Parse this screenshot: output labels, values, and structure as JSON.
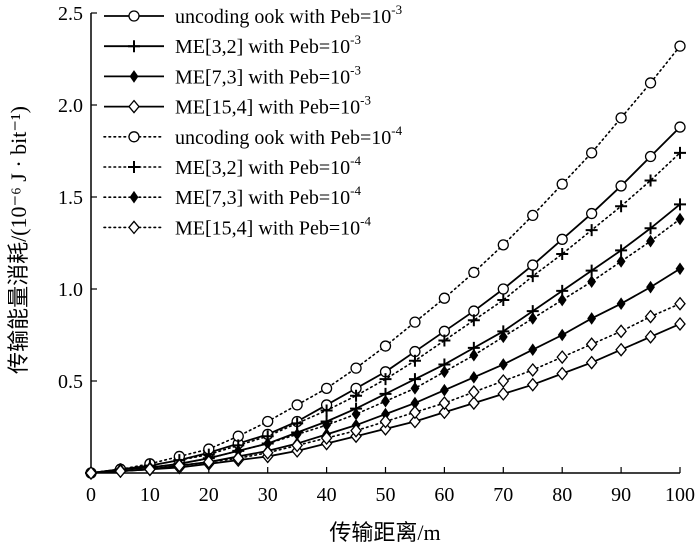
{
  "chart_data": {
    "type": "line",
    "title": "",
    "xlabel": "传输距离/m",
    "ylabel": "传输能量消耗/(10⁻⁶ J · bit⁻¹)",
    "xlim": [
      0,
      100
    ],
    "ylim": [
      0,
      2.5
    ],
    "xticks": [
      0,
      10,
      20,
      30,
      40,
      50,
      60,
      70,
      80,
      90,
      100
    ],
    "yticks": [
      0.5,
      1.0,
      1.5,
      2.0,
      2.5
    ],
    "xtick_labels": [
      "0",
      "10",
      "20",
      "30",
      "40",
      "50",
      "60",
      "70",
      "80",
      "90",
      "100"
    ],
    "ytick_labels": [
      "0.5",
      "1.0",
      "1.5",
      "2.0",
      "2.5"
    ],
    "grid": false,
    "legend_position": "top-left",
    "x": [
      0,
      5,
      10,
      15,
      20,
      25,
      30,
      35,
      40,
      45,
      50,
      55,
      60,
      65,
      70,
      75,
      80,
      85,
      90,
      95,
      100
    ],
    "series": [
      {
        "name": "uncoding ook with Peb=10-3",
        "label_main": "uncoding ook with Peb=10",
        "label_exp": "-3",
        "linestyle": "solid",
        "marker": "circle",
        "values": [
          0.0,
          0.02,
          0.04,
          0.07,
          0.11,
          0.16,
          0.21,
          0.28,
          0.37,
          0.46,
          0.55,
          0.66,
          0.77,
          0.88,
          1.0,
          1.13,
          1.27,
          1.41,
          1.56,
          1.72,
          1.88
        ]
      },
      {
        "name": "ME[3,2] with Peb=10-3",
        "label_main": "ME[3,2]  with Peb=10",
        "label_exp": "-3",
        "linestyle": "solid",
        "marker": "plus",
        "values": [
          0.0,
          0.02,
          0.03,
          0.05,
          0.08,
          0.12,
          0.16,
          0.22,
          0.28,
          0.35,
          0.43,
          0.51,
          0.59,
          0.68,
          0.77,
          0.88,
          0.99,
          1.1,
          1.21,
          1.33,
          1.46
        ]
      },
      {
        "name": "ME[7,3] with Peb=10-3",
        "label_main": "ME[7,3]  with Peb=10",
        "label_exp": "-3",
        "linestyle": "solid",
        "marker": "filled-diamond",
        "values": [
          0.0,
          0.01,
          0.02,
          0.04,
          0.06,
          0.09,
          0.12,
          0.16,
          0.21,
          0.26,
          0.32,
          0.38,
          0.45,
          0.52,
          0.59,
          0.67,
          0.75,
          0.84,
          0.92,
          1.01,
          1.11
        ]
      },
      {
        "name": "ME[15,4] with Peb=10-3",
        "label_main": "ME[15,4]  with Peb=10",
        "label_exp": "-3",
        "linestyle": "solid",
        "marker": "diamond",
        "values": [
          0.0,
          0.01,
          0.02,
          0.03,
          0.05,
          0.07,
          0.09,
          0.12,
          0.16,
          0.2,
          0.24,
          0.28,
          0.33,
          0.38,
          0.43,
          0.48,
          0.54,
          0.6,
          0.67,
          0.74,
          0.81
        ]
      },
      {
        "name": "uncoding ook with Peb=10-4",
        "label_main": "uncoding ook with Peb=10",
        "label_exp": "-4",
        "linestyle": "dotted",
        "marker": "circle",
        "values": [
          0.0,
          0.02,
          0.05,
          0.09,
          0.13,
          0.2,
          0.28,
          0.37,
          0.46,
          0.57,
          0.69,
          0.82,
          0.95,
          1.09,
          1.24,
          1.4,
          1.57,
          1.74,
          1.93,
          2.12,
          2.32
        ]
      },
      {
        "name": "ME[3,2] with Peb=10-4",
        "label_main": "ME[3,2]  with Peb=10",
        "label_exp": "-4",
        "linestyle": "dotted",
        "marker": "plus",
        "values": [
          0.0,
          0.02,
          0.04,
          0.07,
          0.1,
          0.15,
          0.2,
          0.27,
          0.34,
          0.42,
          0.51,
          0.61,
          0.72,
          0.83,
          0.94,
          1.07,
          1.19,
          1.32,
          1.45,
          1.59,
          1.74
        ]
      },
      {
        "name": "ME[7,3] with Peb=10-4",
        "label_main": "ME[7,3]  with Peb=10",
        "label_exp": "-4",
        "linestyle": "dotted",
        "marker": "filled-diamond",
        "values": [
          0.0,
          0.02,
          0.03,
          0.05,
          0.08,
          0.12,
          0.16,
          0.21,
          0.26,
          0.32,
          0.39,
          0.46,
          0.55,
          0.64,
          0.74,
          0.84,
          0.94,
          1.04,
          1.15,
          1.26,
          1.38
        ]
      },
      {
        "name": "ME[15,4] with Peb=10-4",
        "label_main": "ME[15,4]  with Peb=10",
        "label_exp": "-4",
        "linestyle": "dotted",
        "marker": "diamond",
        "values": [
          0.0,
          0.01,
          0.02,
          0.04,
          0.06,
          0.08,
          0.11,
          0.15,
          0.19,
          0.23,
          0.28,
          0.33,
          0.38,
          0.44,
          0.5,
          0.56,
          0.63,
          0.7,
          0.77,
          0.85,
          0.92
        ]
      }
    ]
  }
}
